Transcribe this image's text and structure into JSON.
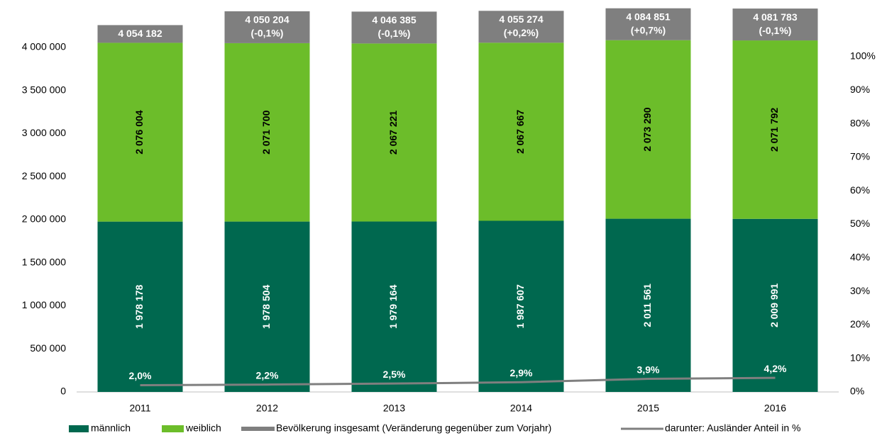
{
  "chart_data": {
    "type": "bar",
    "stacked": true,
    "categories": [
      "2011",
      "2012",
      "2013",
      "2014",
      "2015",
      "2016"
    ],
    "series": [
      {
        "name": "männlich",
        "color": "#00684f",
        "values": [
          1978178,
          1978504,
          1979164,
          1987607,
          2011561,
          2009991
        ],
        "value_labels": [
          "1 978 178",
          "1 978 504",
          "1 979 164",
          "1 987 607",
          "2 011 561",
          "2 009 991"
        ]
      },
      {
        "name": "weiblich",
        "color": "#6cbd2a",
        "values": [
          2076004,
          2071700,
          2067221,
          2067667,
          2073290,
          2071792
        ],
        "value_labels": [
          "2 076 004",
          "2 071 700",
          "2 067 221",
          "2 067 667",
          "2 073 290",
          "2 071 792"
        ]
      },
      {
        "name": "Bevölkerung insgesamt (Veränderung gegenüber zum Vorjahr)",
        "color": "#7f7f7f",
        "kind": "total",
        "values": [
          4054182,
          4050204,
          4046385,
          4055274,
          4084851,
          4081783
        ],
        "value_labels": [
          "4 054 182",
          "4 050 204",
          "4 046 385",
          "4 055 274",
          "4 084 851",
          "4 081 783"
        ],
        "change_labels": [
          null,
          "(-0,1%)",
          "(-0,1%)",
          "(+0,2%)",
          "(+0,7%)",
          "(-0,1%)"
        ]
      },
      {
        "name": "darunter: Ausländer Anteil in %",
        "color": "#7f7f7f",
        "kind": "line",
        "axis": "y2",
        "values": [
          2.0,
          2.2,
          2.5,
          2.9,
          3.9,
          4.2
        ],
        "value_labels": [
          "2,0%",
          "2,2%",
          "2,5%",
          "2,9%",
          "3,9%",
          "4,2%"
        ]
      }
    ],
    "ylim": [
      0,
      4000000
    ],
    "yticks": [
      {
        "value": 0,
        "label": "0"
      },
      {
        "value": 500000,
        "label": "500 000"
      },
      {
        "value": 1000000,
        "label": "1 000 000"
      },
      {
        "value": 1500000,
        "label": "1 500 000"
      },
      {
        "value": 2000000,
        "label": "2 000 000"
      },
      {
        "value": 2500000,
        "label": "2 500 000"
      },
      {
        "value": 3000000,
        "label": "3 000 000"
      },
      {
        "value": 3500000,
        "label": "3 500 000"
      },
      {
        "value": 4000000,
        "label": "4 000 000"
      }
    ],
    "y2lim": [
      0,
      100
    ],
    "y2ticks": [
      {
        "value": 0,
        "label": "0%"
      },
      {
        "value": 10,
        "label": "10%"
      },
      {
        "value": 20,
        "label": "20%"
      },
      {
        "value": 30,
        "label": "30%"
      },
      {
        "value": 40,
        "label": "40%"
      },
      {
        "value": 50,
        "label": "50%"
      },
      {
        "value": 60,
        "label": "60%"
      },
      {
        "value": 70,
        "label": "70%"
      },
      {
        "value": 80,
        "label": "80%"
      },
      {
        "value": 90,
        "label": "90%"
      },
      {
        "value": 100,
        "label": "100%"
      }
    ],
    "legend": "bottom"
  }
}
